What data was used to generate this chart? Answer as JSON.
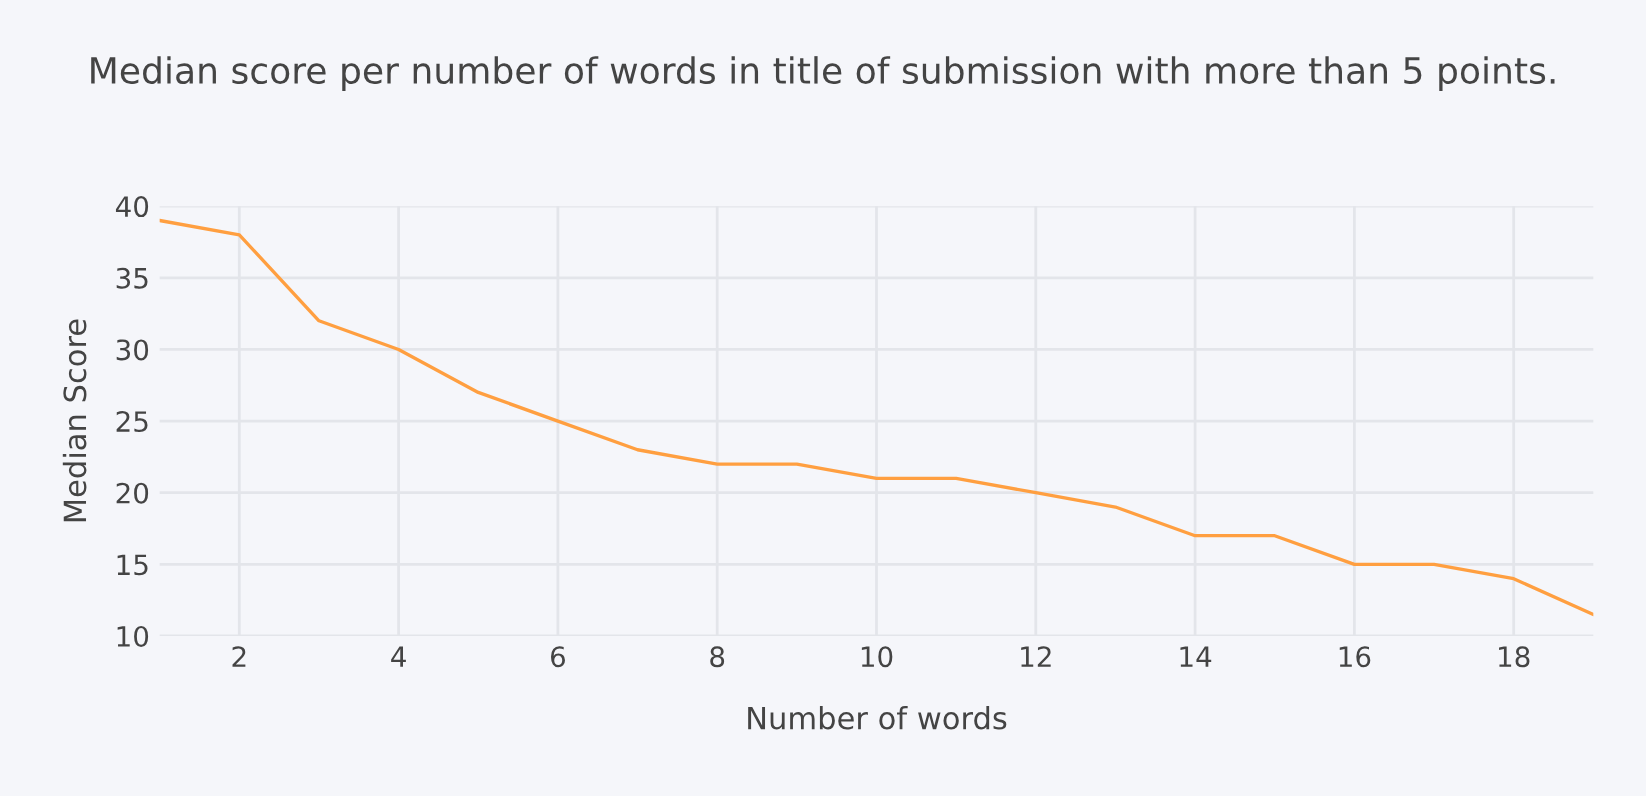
{
  "chart_data": {
    "type": "line",
    "title": "Median score per number of words in title of submission with more than 5 points.",
    "xlabel": "Number of words",
    "ylabel": "Median Score",
    "x": [
      1,
      2,
      3,
      4,
      5,
      6,
      7,
      8,
      9,
      10,
      11,
      12,
      13,
      14,
      15,
      16,
      17,
      18,
      19
    ],
    "series": [
      {
        "color": "#ff9f40",
        "values": [
          39,
          38,
          32,
          30,
          27,
          25,
          23,
          22,
          22,
          21,
          21,
          20,
          19,
          17,
          17,
          15,
          15,
          14,
          11.5
        ]
      }
    ],
    "xlim": [
      1,
      19
    ],
    "xticks": [
      2,
      4,
      6,
      8,
      10,
      12,
      14,
      16,
      18
    ],
    "ylim": [
      10,
      40
    ],
    "yticks": [
      10,
      15,
      20,
      25,
      30,
      35,
      40
    ],
    "grid": true,
    "marker": "none",
    "line_style": "solid"
  }
}
